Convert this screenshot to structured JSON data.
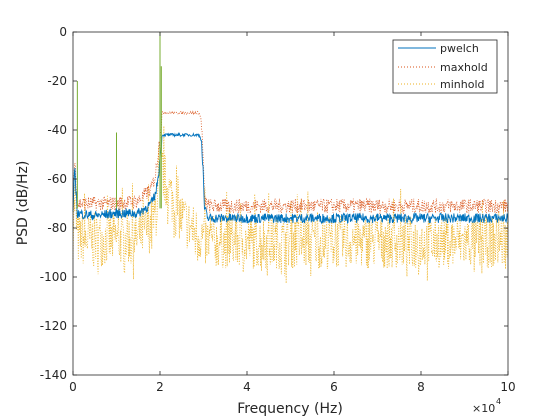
{
  "chart_data": {
    "type": "line",
    "title": "",
    "xlabel": "Frequency (Hz)",
    "ylabel": "PSD (dB/Hz)",
    "x_exponent": "×10^4",
    "xlim": [
      0,
      100000
    ],
    "ylim": [
      -140,
      0
    ],
    "x_ticks": [
      0,
      20000,
      40000,
      60000,
      80000,
      100000
    ],
    "x_tick_labels": [
      "0",
      "2",
      "4",
      "6",
      "8",
      "10"
    ],
    "y_ticks": [
      -140,
      -120,
      -100,
      -80,
      -60,
      -40,
      -20,
      0
    ],
    "y_tick_labels": [
      "-140",
      "-120",
      "-100",
      "-80",
      "-60",
      "-40",
      "-20",
      "0"
    ],
    "grid": false,
    "legend_position": "top-right",
    "series": [
      {
        "name": "pwelch",
        "color": "#0072bd",
        "style": "solid",
        "x": [
          0,
          400,
          1000,
          5000,
          10000,
          15000,
          18000,
          19000,
          19500,
          20000,
          20300,
          20500,
          21000,
          22000,
          23000,
          24000,
          25000,
          26000,
          27000,
          28000,
          29000,
          29500,
          30000,
          30200,
          31000,
          40000,
          50000,
          60000,
          70000,
          80000,
          90000,
          100000
        ],
        "y": [
          -73,
          -56,
          -74,
          -75,
          -74,
          -74,
          -70,
          -66,
          -60,
          -52,
          -46,
          -42,
          -42,
          -42,
          -42,
          -42,
          -42,
          -42,
          -42,
          -42,
          -42,
          -44,
          -60,
          -72,
          -76,
          -76,
          -76,
          -76,
          -76,
          -76,
          -76,
          -76
        ]
      },
      {
        "name": "maxhold",
        "color": "#d95319",
        "style": "dotted",
        "x": [
          0,
          400,
          1000,
          5000,
          10000,
          15000,
          18000,
          19000,
          19500,
          20000,
          20300,
          20500,
          21000,
          22000,
          23000,
          24000,
          25000,
          26000,
          27000,
          28000,
          29000,
          29500,
          30000,
          30200,
          31000,
          40000,
          50000,
          60000,
          70000,
          80000,
          90000,
          100000
        ],
        "y": [
          -69,
          -52,
          -70,
          -70,
          -70,
          -69,
          -64,
          -58,
          -50,
          -43,
          -37,
          -33,
          -33,
          -33,
          -33,
          -33,
          -33,
          -33,
          -33,
          -33,
          -33,
          -36,
          -55,
          -68,
          -71,
          -71,
          -71,
          -71,
          -71,
          -71,
          -71,
          -71
        ]
      },
      {
        "name": "minhold",
        "color": "#edb120",
        "style": "dotted",
        "x": [
          0,
          400,
          1000,
          5000,
          10000,
          15000,
          18000,
          19000,
          19500,
          20000,
          20300,
          20500,
          21000,
          22000,
          23000,
          24000,
          25000,
          26000,
          27000,
          28000,
          29000,
          29500,
          30000,
          30200,
          31000,
          40000,
          50000,
          60000,
          70000,
          80000,
          90000,
          100000
        ],
        "y": [
          -85,
          -70,
          -88,
          -88,
          -88,
          -87,
          -82,
          -78,
          -72,
          -62,
          -58,
          -60,
          -63,
          -68,
          -72,
          -76,
          -79,
          -81,
          -83,
          -85,
          -86,
          -87,
          -88,
          -89,
          -89,
          -89,
          -89,
          -89,
          -89,
          -89,
          -89,
          -89
        ]
      }
    ],
    "spikes": [
      {
        "x": 1000,
        "y": -20
      },
      {
        "x": 10000,
        "y": -41
      },
      {
        "x": 20000,
        "y": 0
      },
      {
        "x": 20300,
        "y": -14
      }
    ]
  }
}
